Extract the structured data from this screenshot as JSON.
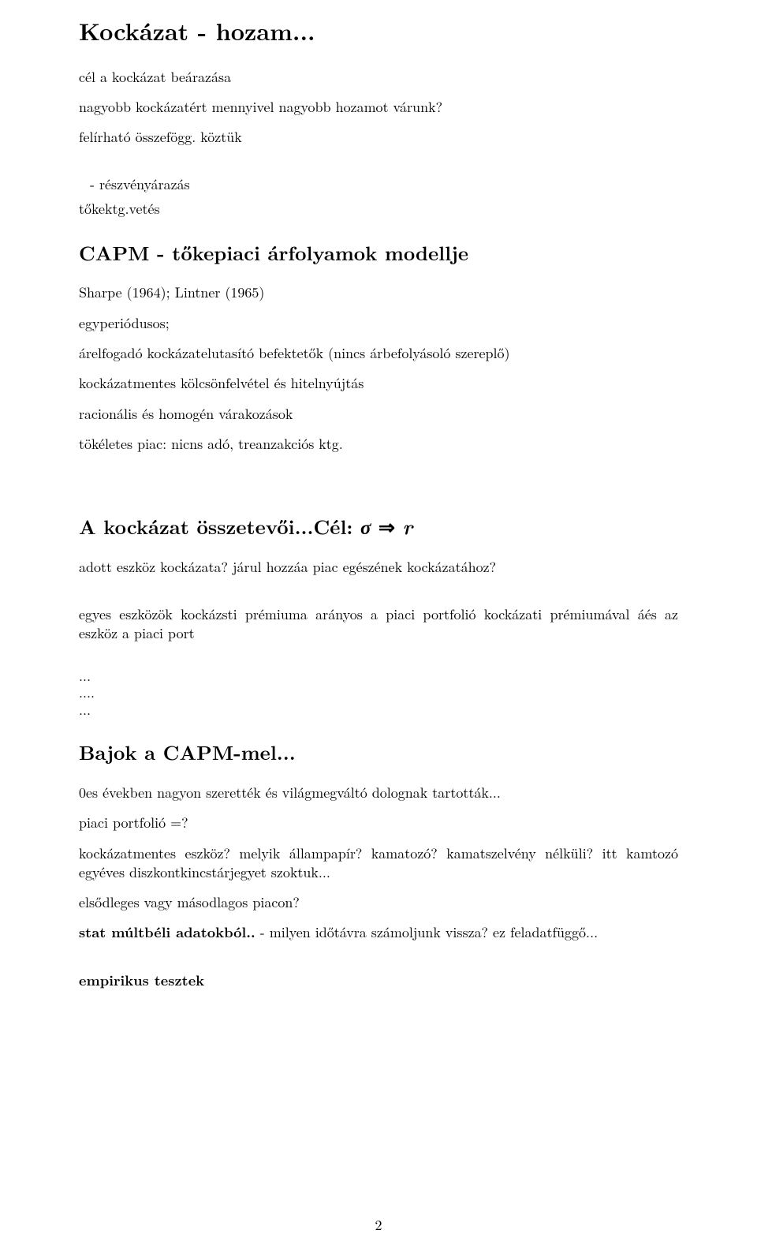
{
  "sec1": {
    "title": "Kockázat - hozam...",
    "p1": "cél a kockázat beárazása",
    "p2": "nagyobb kockázatért mennyivel nagyobb hozamot várunk?",
    "p3": "felírható összefögg. köztük",
    "p4": " - részvényárazás",
    "p5": "tőkektg.vetés"
  },
  "sec2": {
    "title": "CAPM - tőkepiaci árfolyamok modellje",
    "p1": "Sharpe (1964); Lintner (1965)",
    "p2": "egyperiódusos;",
    "p3": "árelfogadó kockázatelutasító befektetők (nincs árbefolyásoló szereplő)",
    "p4": "kockázatmentes kölcsönfelvétel és hitelnyújtás",
    "p5": "racionális és homogén várakozások",
    "p6": "tökéletes piac: nicns adó, treanzakciós ktg."
  },
  "sec3": {
    "title_a": "A kockázat összetevői...Cél: ",
    "title_sigma": "σ",
    "title_arrow": " ⇒ ",
    "title_r": "r",
    "p1": "adott eszköz kockázata? járul hozzáa  piac egészének kockázatához?",
    "p2": "egyes eszközök kockázsti prémiuma arányos a piaci portfolió kockázati prémiumával áés az eszköz a piaci port"
  },
  "dots": {
    "d1": "...",
    "d2": "....",
    "d3": "..."
  },
  "sec4": {
    "title": "Bajok a CAPM-mel...",
    "p1": "0es években nagyon szerették és világmegváltó dolognak tartották...",
    "p2": "piaci portfolió =?",
    "p3": "kockázatmentes eszköz? melyik állampapír? kamatozó? kamatszelvény nélküli? itt kamtozó egyéves diszkontkincstárjegyet szoktuk...",
    "p4": "elsődleges vagy másodlagos piacon?",
    "p5a": "stat múltbéli adatokból..",
    "p5b": " - milyen időtávra számoljunk vissza? ez feladatfüggő...",
    "p6": "empirikus tesztek"
  },
  "page_number": "2"
}
